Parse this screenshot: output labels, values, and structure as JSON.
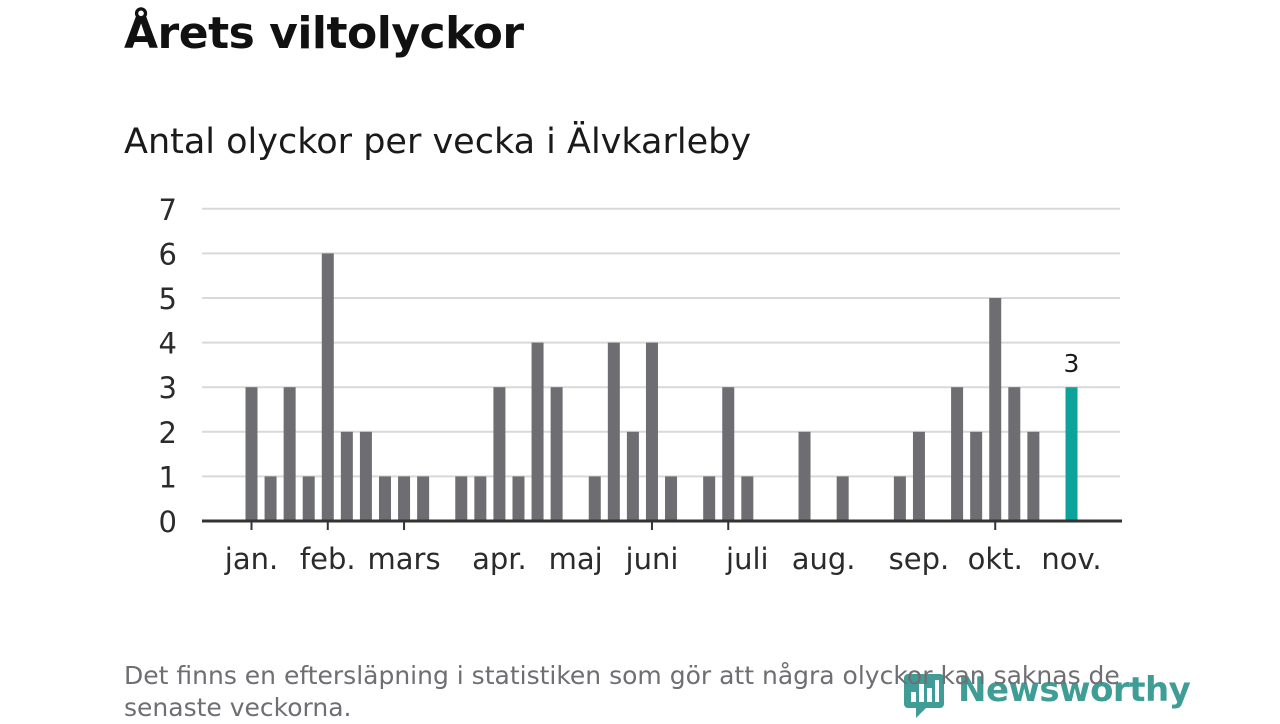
{
  "title": "Årets viltolyckor",
  "note": "Det finns en eftersläpning i statistiken som gör att några olyckor kan saknas de senaste veckorna.",
  "brand": {
    "name": "Newsworthy",
    "icon": "newsworthy-logo-icon",
    "color": "#1e8c84"
  },
  "chart_data": {
    "type": "bar",
    "title": "Antal olyckor per vecka i Älvkarleby",
    "ylim": [
      0,
      7
    ],
    "yticks": [
      "0",
      "1",
      "2",
      "3",
      "4",
      "5",
      "6",
      "7"
    ],
    "grid": true,
    "bar_color": "#6e6d72",
    "highlight_color": "#0ea39a",
    "weeks": [
      1,
      2,
      3,
      4,
      5,
      6,
      7,
      8,
      9,
      10,
      11,
      12,
      13,
      14,
      15,
      16,
      17,
      18,
      19,
      20,
      21,
      22,
      23,
      24,
      25,
      26,
      27,
      28,
      29,
      30,
      31,
      32,
      33,
      34,
      35,
      36,
      37,
      38,
      39,
      40,
      41,
      42,
      43,
      44,
      45,
      46
    ],
    "values": [
      3,
      1,
      3,
      1,
      6,
      2,
      2,
      1,
      1,
      1,
      0,
      1,
      1,
      3,
      1,
      4,
      3,
      0,
      1,
      4,
      2,
      4,
      1,
      0,
      1,
      3,
      1,
      0,
      0,
      2,
      0,
      1,
      0,
      0,
      1,
      2,
      0,
      3,
      2,
      5,
      3,
      2,
      0,
      3,
      null,
      null
    ],
    "highlight_index": 43,
    "highlight_label": "3",
    "month_labels": [
      {
        "label": "jan.",
        "week": 1
      },
      {
        "label": "feb.",
        "week": 5
      },
      {
        "label": "mars",
        "week": 9
      },
      {
        "label": "apr.",
        "week": 14
      },
      {
        "label": "maj",
        "week": 18
      },
      {
        "label": "juni",
        "week": 22
      },
      {
        "label": "juli",
        "week": 27
      },
      {
        "label": "aug.",
        "week": 31
      },
      {
        "label": "sep.",
        "week": 36
      },
      {
        "label": "okt.",
        "week": 40
      },
      {
        "label": "nov.",
        "week": 44
      }
    ],
    "month_ticks": [
      1,
      5,
      9,
      22,
      26,
      40
    ]
  }
}
